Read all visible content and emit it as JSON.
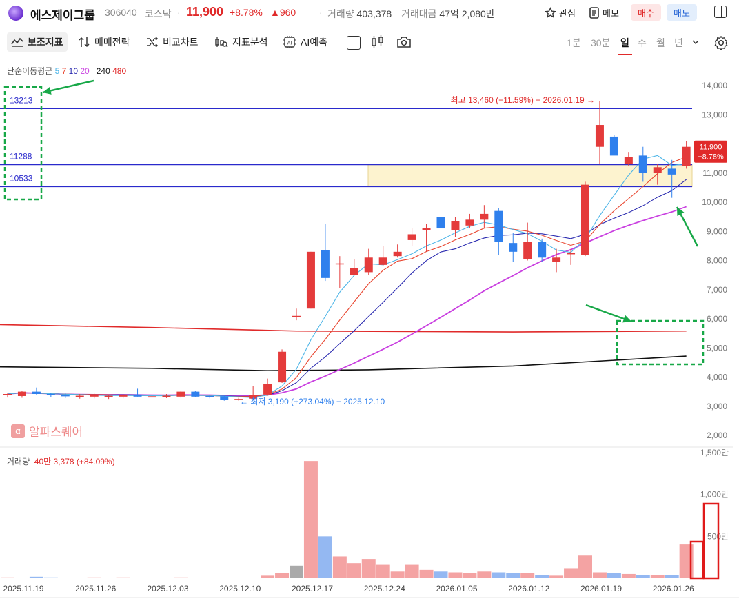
{
  "header": {
    "name": "에스제이그룹",
    "code": "306040",
    "market": "코스닥",
    "price": "11,900",
    "change_pct": "+8.78%",
    "change_abs": "▲960",
    "volume_label": "거래량",
    "volume_value": "403,378",
    "amount_label": "거래대금",
    "amount_value": "47억 2,080만",
    "watch_label": "관심",
    "memo_label": "메모",
    "buy_label": "매수",
    "sell_label": "매도"
  },
  "toolbar": {
    "indicators": "보조지표",
    "strategy": "매매전략",
    "compare": "비교차트",
    "analysis": "지표분석",
    "ai": "AI예측",
    "timeframes": [
      "1분",
      "30분",
      "일",
      "주",
      "월",
      "년"
    ],
    "active_timeframe": "일"
  },
  "legend": {
    "ma_title": "단순이동평균",
    "ma_periods": [
      "5",
      "7",
      "10",
      "20",
      "240",
      "480"
    ],
    "ma_colors": [
      "#4fb6e8",
      "#e8442e",
      "#2b2bb0",
      "#c93fe0",
      "#111111",
      "#e02a2a"
    ],
    "volume_title": "거래량",
    "volume_value": "40만 3,378 (+84.09%)"
  },
  "watermark": "알파스퀘어",
  "colors": {
    "up": "#e43b3b",
    "down": "#2f80ed",
    "vol_up": "#f4a3a3",
    "vol_down": "#94b8f2",
    "vol_neutral": "#aaaaaa"
  },
  "chart_data": {
    "type": "candlestick",
    "ylim": [
      1800,
      14300
    ],
    "y_ticks": [
      "14,000",
      "13,000",
      "12,000",
      "11,000",
      "10,000",
      "9,000",
      "8,000",
      "7,000",
      "6,000",
      "5,000",
      "4,000",
      "3,000",
      "2,000"
    ],
    "x_ticks": [
      "2025.11.19",
      "2025.11.26",
      "2025.12.03",
      "2025.12.10",
      "2025.12.17",
      "2025.12.24",
      "2026.01.05",
      "2026.01.12",
      "2026.01.19",
      "2026.01.26"
    ],
    "candles": [
      {
        "o": 3380,
        "h": 3460,
        "l": 3300,
        "c": 3420
      },
      {
        "o": 3350,
        "h": 3520,
        "l": 3290,
        "c": 3500
      },
      {
        "o": 3500,
        "h": 3640,
        "l": 3400,
        "c": 3420
      },
      {
        "o": 3420,
        "h": 3460,
        "l": 3320,
        "c": 3380
      },
      {
        "o": 3380,
        "h": 3440,
        "l": 3280,
        "c": 3340
      },
      {
        "o": 3320,
        "h": 3420,
        "l": 3260,
        "c": 3360
      },
      {
        "o": 3330,
        "h": 3430,
        "l": 3270,
        "c": 3380
      },
      {
        "o": 3330,
        "h": 3400,
        "l": 3250,
        "c": 3360
      },
      {
        "o": 3330,
        "h": 3420,
        "l": 3270,
        "c": 3400
      },
      {
        "o": 3400,
        "h": 3600,
        "l": 3330,
        "c": 3330
      },
      {
        "o": 3300,
        "h": 3400,
        "l": 3260,
        "c": 3340
      },
      {
        "o": 3330,
        "h": 3420,
        "l": 3280,
        "c": 3360
      },
      {
        "o": 3330,
        "h": 3520,
        "l": 3290,
        "c": 3500
      },
      {
        "o": 3500,
        "h": 3520,
        "l": 3310,
        "c": 3330
      },
      {
        "o": 3350,
        "h": 3390,
        "l": 3270,
        "c": 3320
      },
      {
        "o": 3340,
        "h": 3380,
        "l": 3190,
        "c": 3210
      },
      {
        "o": 3220,
        "h": 3290,
        "l": 3190,
        "c": 3250
      },
      {
        "o": 3260,
        "h": 3700,
        "l": 3230,
        "c": 3380
      },
      {
        "o": 3400,
        "h": 3950,
        "l": 3360,
        "c": 3760
      },
      {
        "o": 3820,
        "h": 4950,
        "l": 3800,
        "c": 4870
      },
      {
        "o": 6100,
        "h": 6350,
        "l": 5950,
        "c": 6100
      },
      {
        "o": 6350,
        "h": 8300,
        "l": 6350,
        "c": 8300
      },
      {
        "o": 8350,
        "h": 9250,
        "l": 7300,
        "c": 7400
      },
      {
        "o": 7900,
        "h": 8150,
        "l": 7050,
        "c": 7900
      },
      {
        "o": 7500,
        "h": 8050,
        "l": 7500,
        "c": 7750
      },
      {
        "o": 7600,
        "h": 8400,
        "l": 7500,
        "c": 8100
      },
      {
        "o": 7850,
        "h": 8500,
        "l": 7800,
        "c": 8100
      },
      {
        "o": 8150,
        "h": 8550,
        "l": 8100,
        "c": 8300
      },
      {
        "o": 8700,
        "h": 9100,
        "l": 8500,
        "c": 8900
      },
      {
        "o": 9050,
        "h": 9250,
        "l": 8300,
        "c": 9100
      },
      {
        "o": 9500,
        "h": 9650,
        "l": 8600,
        "c": 9100
      },
      {
        "o": 9050,
        "h": 9500,
        "l": 8800,
        "c": 9350
      },
      {
        "o": 9200,
        "h": 9600,
        "l": 9100,
        "c": 9400
      },
      {
        "o": 9400,
        "h": 9900,
        "l": 9100,
        "c": 9600
      },
      {
        "o": 9700,
        "h": 9800,
        "l": 8200,
        "c": 8650
      },
      {
        "o": 8600,
        "h": 8950,
        "l": 7950,
        "c": 8300
      },
      {
        "o": 8050,
        "h": 9300,
        "l": 8000,
        "c": 8650
      },
      {
        "o": 8650,
        "h": 8750,
        "l": 7950,
        "c": 8100
      },
      {
        "o": 7950,
        "h": 8400,
        "l": 7600,
        "c": 8100
      },
      {
        "o": 8250,
        "h": 8400,
        "l": 7850,
        "c": 8250
      },
      {
        "o": 8200,
        "h": 10700,
        "l": 8150,
        "c": 10600
      },
      {
        "o": 11900,
        "h": 13460,
        "l": 11300,
        "c": 12650
      },
      {
        "o": 12250,
        "h": 12300,
        "l": 11650,
        "c": 11600
      },
      {
        "o": 11300,
        "h": 11700,
        "l": 11250,
        "c": 11550
      },
      {
        "o": 11600,
        "h": 11900,
        "l": 10700,
        "c": 11000
      },
      {
        "o": 11000,
        "h": 11300,
        "l": 10600,
        "c": 11200
      },
      {
        "o": 11150,
        "h": 11450,
        "l": 10150,
        "c": 10950
      },
      {
        "o": 11250,
        "h": 12100,
        "l": 11150,
        "c": 11900
      }
    ],
    "volumes_k": [
      10,
      8,
      18,
      10,
      8,
      6,
      10,
      8,
      10,
      8,
      8,
      6,
      10,
      8,
      6,
      6,
      8,
      8,
      30,
      60,
      150,
      1400,
      500,
      260,
      180,
      230,
      160,
      80,
      160,
      100,
      80,
      70,
      60,
      80,
      70,
      60,
      60,
      40,
      30,
      120,
      270,
      70,
      60,
      50,
      40,
      40,
      40,
      403
    ],
    "volume_ylim": [
      0,
      1500
    ],
    "volume_ticks": [
      "1,500만",
      "1,000만",
      "500만"
    ],
    "hlines": [
      {
        "label": "13213",
        "value": 13213
      },
      {
        "label": "11288",
        "value": 11288
      },
      {
        "label": "10533",
        "value": 10533
      }
    ],
    "zone": {
      "low": 10533,
      "high": 11288
    },
    "annotations": {
      "high": "최고 13,460 (−11.59%) − 2026.01.19 →",
      "low": "← 최저 3,190 (+273.04%) − 2025.12.10"
    },
    "last_price_label": "11,900",
    "last_change_label": "+8.78%",
    "ma_lines": [
      {
        "period": "240",
        "values": [
          {
            "i": 0,
            "v": 4350
          },
          {
            "i": 10,
            "v": 4300
          },
          {
            "i": 18,
            "v": 4220
          },
          {
            "i": 25,
            "v": 4250
          },
          {
            "i": 35,
            "v": 4380
          },
          {
            "i": 47,
            "v": 4720
          }
        ]
      },
      {
        "period": "480",
        "values": [
          {
            "i": 0,
            "v": 5800
          },
          {
            "i": 10,
            "v": 5700
          },
          {
            "i": 20,
            "v": 5580
          },
          {
            "i": 35,
            "v": 5550
          },
          {
            "i": 47,
            "v": 5580
          }
        ]
      }
    ]
  }
}
